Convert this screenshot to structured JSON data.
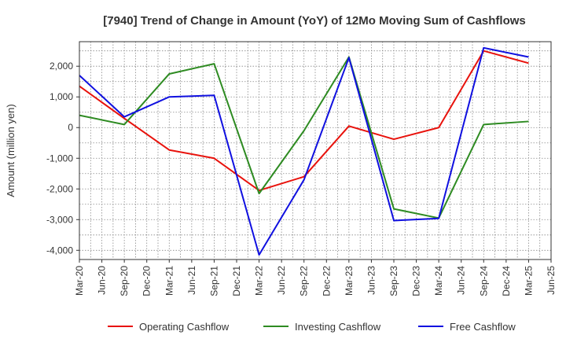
{
  "chart_data": {
    "type": "line",
    "title": "[7940]  Trend of Change in Amount (YoY) of 12Mo Moving Sum of Cashflows",
    "xlabel": "",
    "ylabel": "Amount (million yen)",
    "categories": [
      "Mar-20",
      "Jun-20",
      "Sep-20",
      "Dec-20",
      "Mar-21",
      "Jun-21",
      "Sep-21",
      "Dec-21",
      "Mar-22",
      "Jun-22",
      "Sep-22",
      "Dec-22",
      "Mar-23",
      "Jun-23",
      "Sep-23",
      "Dec-23",
      "Mar-24",
      "Jun-24",
      "Sep-24",
      "Dec-24",
      "Mar-25",
      "Jun-25"
    ],
    "yticks": [
      2000,
      1000,
      0,
      -1000,
      -2000,
      -3000,
      -4000
    ],
    "ytick_labels": [
      "2,000",
      "1,000",
      "0",
      "-1,000",
      "-2,000",
      "-3,000",
      "-4,000"
    ],
    "ylim": [
      -4300,
      2800
    ],
    "grid": true,
    "legend_position": "bottom",
    "series": [
      {
        "name": "Operating Cashflow",
        "color": "#e8120c",
        "points": [
          [
            0,
            1350
          ],
          [
            2,
            300
          ],
          [
            4,
            -730
          ],
          [
            6,
            -1000
          ],
          [
            8,
            -2050
          ],
          [
            10,
            -1600
          ],
          [
            12,
            50
          ],
          [
            14,
            -380
          ],
          [
            16,
            0
          ],
          [
            18,
            2500
          ],
          [
            20,
            2100
          ]
        ]
      },
      {
        "name": "Investing Cashflow",
        "color": "#2e8b22",
        "points": [
          [
            0,
            400
          ],
          [
            2,
            100
          ],
          [
            4,
            1750
          ],
          [
            6,
            2080
          ],
          [
            8,
            -2150
          ],
          [
            10,
            -100
          ],
          [
            12,
            2300
          ],
          [
            14,
            -2650
          ],
          [
            16,
            -2950
          ],
          [
            18,
            100
          ],
          [
            20,
            200
          ]
        ]
      },
      {
        "name": "Free Cashflow",
        "color": "#1010e0",
        "points": [
          [
            0,
            1700
          ],
          [
            2,
            350
          ],
          [
            4,
            1000
          ],
          [
            6,
            1050
          ],
          [
            8,
            -4150
          ],
          [
            10,
            -1700
          ],
          [
            12,
            2280
          ],
          [
            14,
            -3030
          ],
          [
            16,
            -2960
          ],
          [
            18,
            2600
          ],
          [
            20,
            2300
          ]
        ]
      }
    ]
  }
}
